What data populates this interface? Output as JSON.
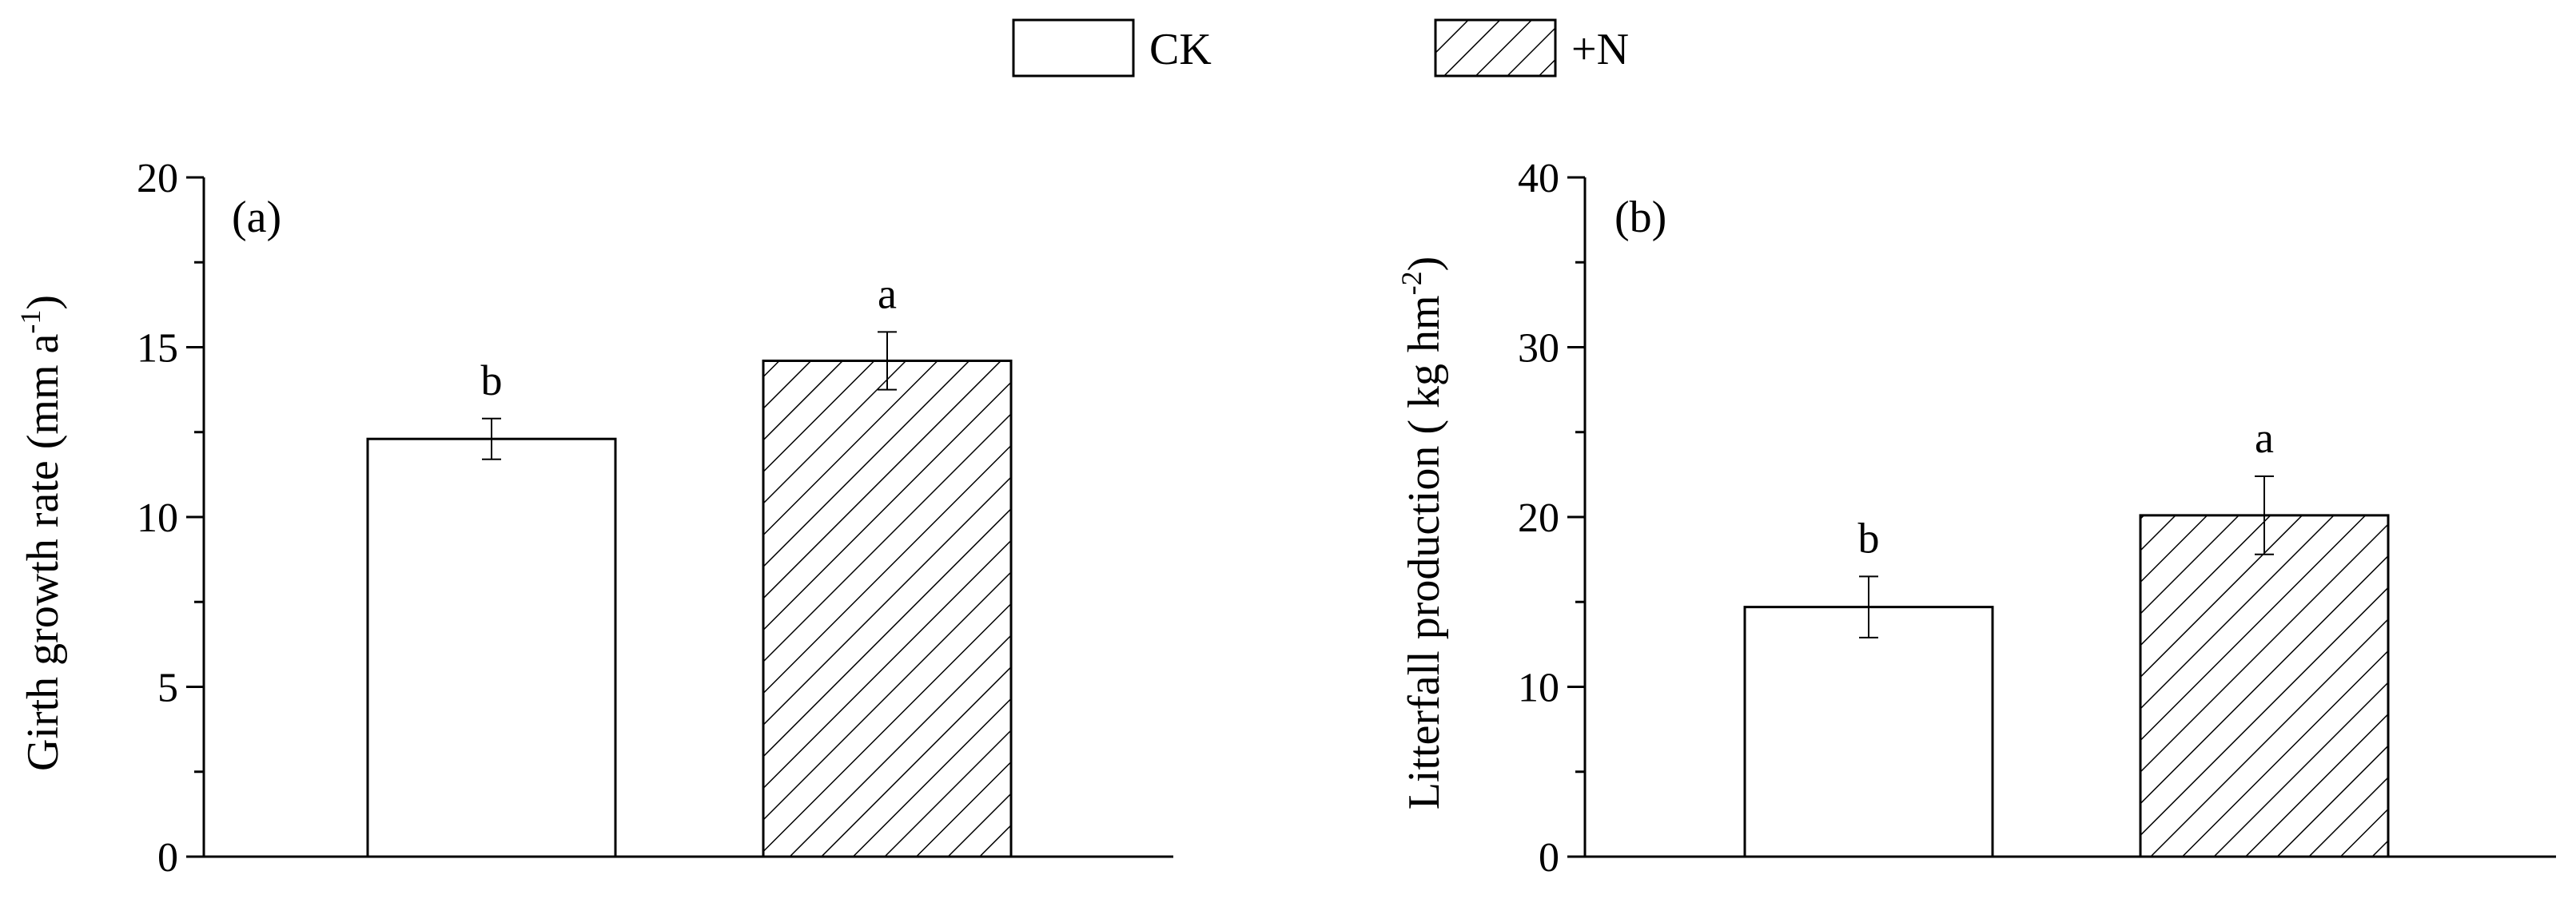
{
  "legend": {
    "items": [
      {
        "label": "CK",
        "pattern": "none"
      },
      {
        "label": "+N",
        "pattern": "hatch"
      }
    ]
  },
  "chart_data": [
    {
      "type": "bar",
      "panel_label": "(a)",
      "categories": [
        "CK",
        "+N"
      ],
      "values": [
        12.3,
        14.6
      ],
      "errors": [
        0.6,
        0.85
      ],
      "significance": [
        "b",
        "a"
      ],
      "ylabel": "Girth growth rate (mm a",
      "ylabel_sup": "-1",
      "ylabel_close": ")",
      "ylim": [
        0,
        20
      ],
      "yticks": [
        0,
        5,
        10,
        15,
        20
      ],
      "grid": false
    },
    {
      "type": "bar",
      "panel_label": "(b)",
      "categories": [
        "CK",
        "+N"
      ],
      "values": [
        14.7,
        20.1
      ],
      "errors": [
        1.8,
        2.3
      ],
      "significance": [
        "b",
        "a"
      ],
      "ylabel": "Litterfall production ( kg hm",
      "ylabel_sup": "-2",
      "ylabel_close": ")",
      "ylim": [
        0,
        40
      ],
      "yticks": [
        0,
        10,
        20,
        30,
        40
      ],
      "grid": false
    }
  ],
  "colors": {
    "stroke": "#000000",
    "fill": "#ffffff"
  }
}
